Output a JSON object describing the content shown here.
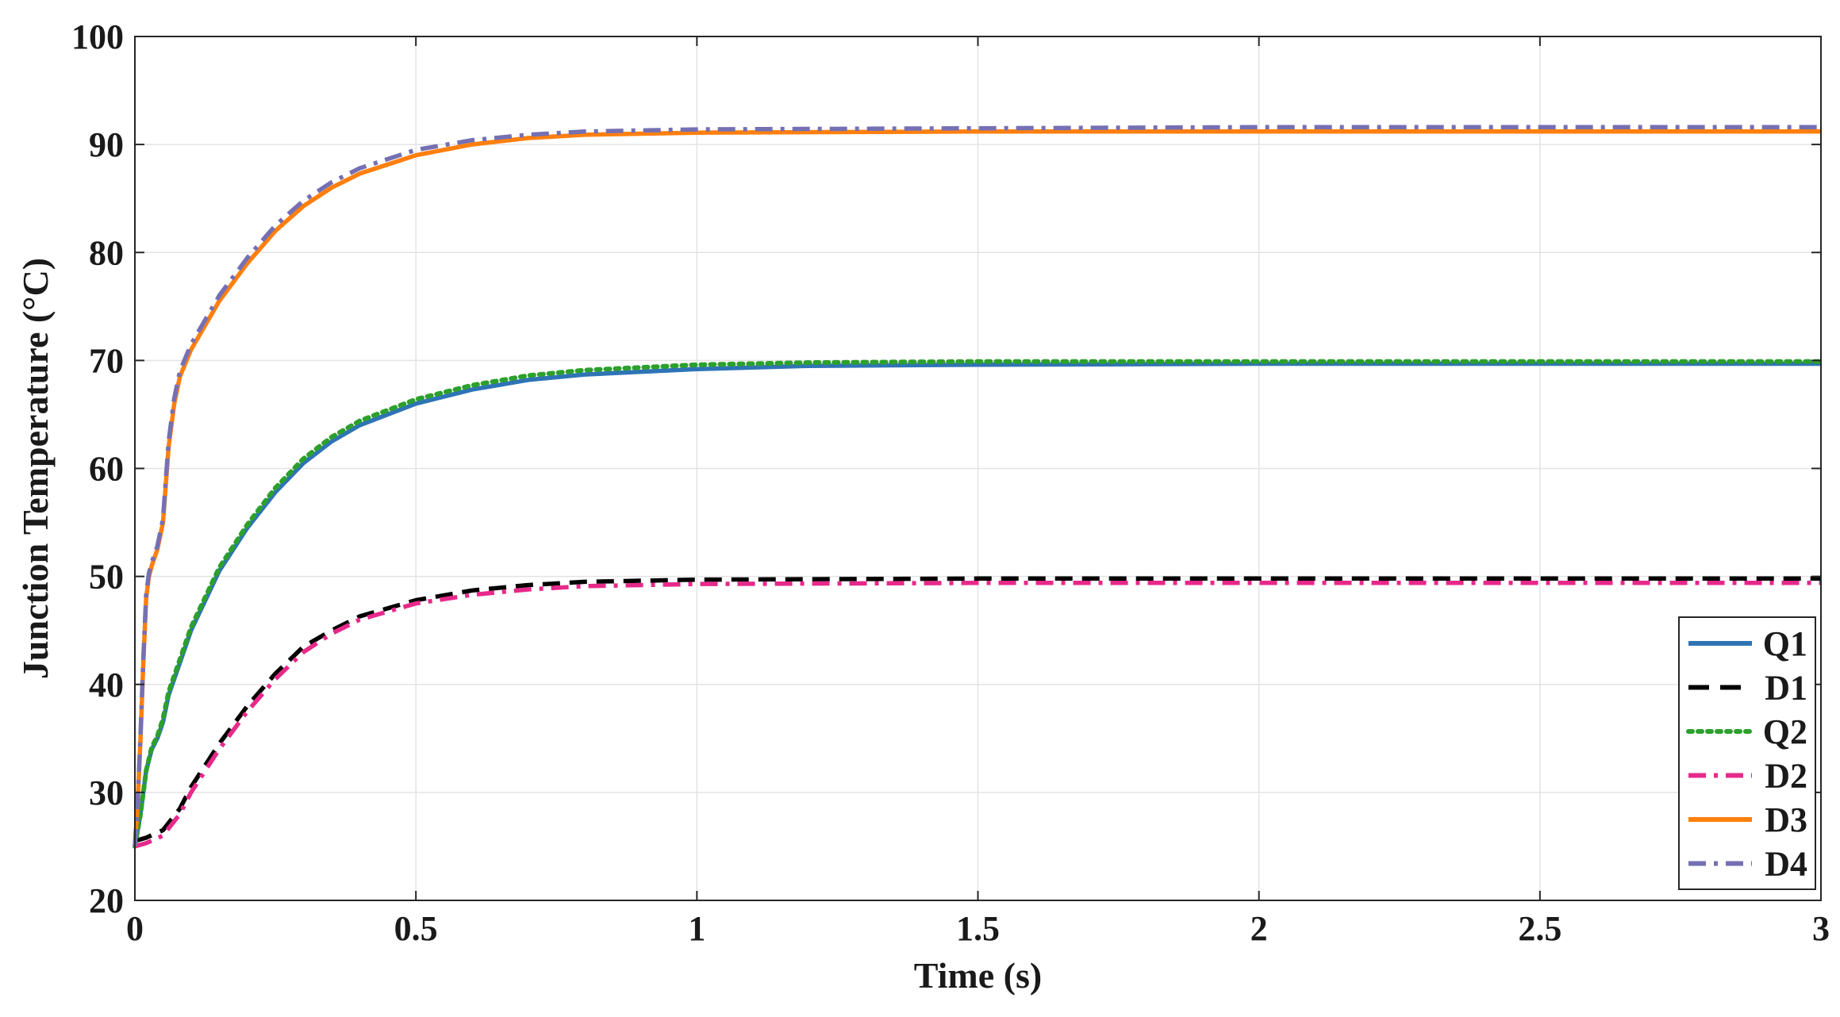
{
  "chart_data": {
    "type": "line",
    "title": "",
    "xlabel": "Time (s)",
    "ylabel": "Junction Temperature (°C)",
    "xlim": [
      0,
      3
    ],
    "ylim": [
      20,
      100
    ],
    "x_ticks": [
      "0",
      "0.5",
      "1",
      "1.5",
      "2",
      "2.5",
      "3"
    ],
    "y_ticks": [
      "20",
      "30",
      "40",
      "50",
      "60",
      "70",
      "80",
      "90",
      "100"
    ],
    "grid": true,
    "legend_position": "bottom-right",
    "series": [
      {
        "name": "Q1",
        "color": "#2e74b5",
        "style": "solid",
        "points": [
          [
            0,
            25
          ],
          [
            0.01,
            28
          ],
          [
            0.02,
            32
          ],
          [
            0.03,
            34
          ],
          [
            0.04,
            35
          ],
          [
            0.05,
            36.5
          ],
          [
            0.06,
            39
          ],
          [
            0.08,
            42
          ],
          [
            0.1,
            45
          ],
          [
            0.15,
            50.5
          ],
          [
            0.2,
            54.5
          ],
          [
            0.25,
            57.8
          ],
          [
            0.3,
            60.5
          ],
          [
            0.35,
            62.5
          ],
          [
            0.4,
            64
          ],
          [
            0.5,
            66
          ],
          [
            0.6,
            67.3
          ],
          [
            0.7,
            68.2
          ],
          [
            0.8,
            68.7
          ],
          [
            1.0,
            69.2
          ],
          [
            1.2,
            69.5
          ],
          [
            1.5,
            69.6
          ],
          [
            2.0,
            69.7
          ],
          [
            2.5,
            69.7
          ],
          [
            3.0,
            69.7
          ]
        ]
      },
      {
        "name": "D1",
        "color": "#000000",
        "style": "dashed",
        "points": [
          [
            0,
            25.5
          ],
          [
            0.02,
            25.8
          ],
          [
            0.05,
            26.5
          ],
          [
            0.08,
            28.5
          ],
          [
            0.1,
            30.5
          ],
          [
            0.15,
            34.5
          ],
          [
            0.2,
            38
          ],
          [
            0.25,
            41
          ],
          [
            0.3,
            43.5
          ],
          [
            0.35,
            45
          ],
          [
            0.4,
            46.3
          ],
          [
            0.5,
            47.8
          ],
          [
            0.6,
            48.7
          ],
          [
            0.7,
            49.2
          ],
          [
            0.8,
            49.5
          ],
          [
            1.0,
            49.7
          ],
          [
            1.5,
            49.8
          ],
          [
            2.0,
            49.8
          ],
          [
            3.0,
            49.8
          ]
        ]
      },
      {
        "name": "Q2",
        "color": "#2ca02c",
        "style": "dotted",
        "points": [
          [
            0,
            25
          ],
          [
            0.01,
            28
          ],
          [
            0.02,
            32
          ],
          [
            0.03,
            34.2
          ],
          [
            0.04,
            35.2
          ],
          [
            0.05,
            36.8
          ],
          [
            0.06,
            39.3
          ],
          [
            0.08,
            42.3
          ],
          [
            0.1,
            45.3
          ],
          [
            0.15,
            50.8
          ],
          [
            0.2,
            54.8
          ],
          [
            0.25,
            58.2
          ],
          [
            0.3,
            60.9
          ],
          [
            0.35,
            62.9
          ],
          [
            0.4,
            64.4
          ],
          [
            0.5,
            66.4
          ],
          [
            0.6,
            67.7
          ],
          [
            0.7,
            68.6
          ],
          [
            0.8,
            69.1
          ],
          [
            1.0,
            69.6
          ],
          [
            1.2,
            69.8
          ],
          [
            1.5,
            69.9
          ],
          [
            2.0,
            69.9
          ],
          [
            3.0,
            69.9
          ]
        ]
      },
      {
        "name": "D2",
        "color": "#e7298a",
        "style": "dashdot",
        "points": [
          [
            0,
            25
          ],
          [
            0.02,
            25.3
          ],
          [
            0.05,
            26
          ],
          [
            0.08,
            28
          ],
          [
            0.1,
            30
          ],
          [
            0.15,
            34
          ],
          [
            0.2,
            37.5
          ],
          [
            0.25,
            40.5
          ],
          [
            0.3,
            43
          ],
          [
            0.35,
            44.7
          ],
          [
            0.4,
            46
          ],
          [
            0.5,
            47.5
          ],
          [
            0.6,
            48.3
          ],
          [
            0.7,
            48.8
          ],
          [
            0.8,
            49.1
          ],
          [
            1.0,
            49.3
          ],
          [
            1.5,
            49.4
          ],
          [
            2.0,
            49.4
          ],
          [
            3.0,
            49.4
          ]
        ]
      },
      {
        "name": "D3",
        "color": "#ff7f0e",
        "style": "solid",
        "points": [
          [
            0,
            25
          ],
          [
            0.005,
            29
          ],
          [
            0.01,
            35
          ],
          [
            0.015,
            42
          ],
          [
            0.02,
            48
          ],
          [
            0.025,
            50
          ],
          [
            0.03,
            51
          ],
          [
            0.04,
            52.5
          ],
          [
            0.05,
            55
          ],
          [
            0.06,
            62
          ],
          [
            0.07,
            66
          ],
          [
            0.08,
            68.5
          ],
          [
            0.1,
            71
          ],
          [
            0.15,
            75.5
          ],
          [
            0.2,
            79
          ],
          [
            0.25,
            82
          ],
          [
            0.3,
            84.3
          ],
          [
            0.35,
            86
          ],
          [
            0.4,
            87.3
          ],
          [
            0.5,
            89
          ],
          [
            0.6,
            90
          ],
          [
            0.7,
            90.6
          ],
          [
            0.8,
            90.9
          ],
          [
            1.0,
            91.1
          ],
          [
            1.5,
            91.2
          ],
          [
            2.0,
            91.2
          ],
          [
            3.0,
            91.2
          ]
        ]
      },
      {
        "name": "D4",
        "color": "#7570b3",
        "style": "dashdot",
        "points": [
          [
            0,
            25
          ],
          [
            0.005,
            29.3
          ],
          [
            0.01,
            35.3
          ],
          [
            0.015,
            42.3
          ],
          [
            0.02,
            48.3
          ],
          [
            0.025,
            50.3
          ],
          [
            0.03,
            51.3
          ],
          [
            0.04,
            52.8
          ],
          [
            0.05,
            55.3
          ],
          [
            0.06,
            62.5
          ],
          [
            0.07,
            66.5
          ],
          [
            0.08,
            69
          ],
          [
            0.1,
            71.5
          ],
          [
            0.15,
            76
          ],
          [
            0.2,
            79.5
          ],
          [
            0.25,
            82.5
          ],
          [
            0.3,
            84.8
          ],
          [
            0.35,
            86.5
          ],
          [
            0.4,
            87.8
          ],
          [
            0.5,
            89.5
          ],
          [
            0.6,
            90.4
          ],
          [
            0.7,
            90.9
          ],
          [
            0.8,
            91.2
          ],
          [
            1.0,
            91.4
          ],
          [
            1.5,
            91.5
          ],
          [
            2.0,
            91.6
          ],
          [
            3.0,
            91.6
          ]
        ]
      }
    ]
  }
}
